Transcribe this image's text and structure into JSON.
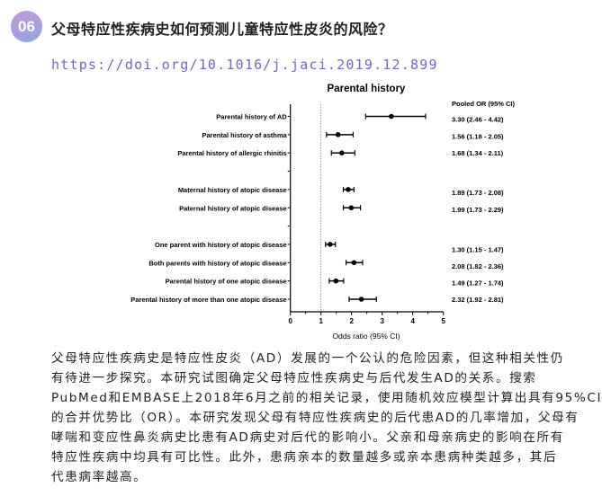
{
  "header": {
    "badge": "06",
    "title": "父母特应性疾病史如何预测儿童特应性皮炎的风险？",
    "doi": "https://doi.org/10.1016/j.jaci.2019.12.899"
  },
  "chart_data": {
    "type": "forest",
    "title": "Parental history",
    "xlabel": "Odds ratio  (95% CI)",
    "xlim": [
      0,
      5
    ],
    "xticks": [
      "0",
      "1",
      "2",
      "3",
      "4",
      "5"
    ],
    "reference_line": 1,
    "ci_header": "Pooled OR  (95% CI)",
    "rows": [
      {
        "label": "Parental history of AD",
        "or": 3.3,
        "lo": 2.46,
        "hi": 4.42,
        "text": "3.30 (2.46 - 4.42)"
      },
      {
        "label": "Parental history of asthma",
        "or": 1.56,
        "lo": 1.18,
        "hi": 2.05,
        "text": "1.56 (1.18 - 2.05)"
      },
      {
        "label": "Parental history of allergic rhinitis",
        "or": 1.68,
        "lo": 1.34,
        "hi": 2.11,
        "text": "1.68 (1.34 - 2.11)"
      },
      null,
      {
        "label": "Maternal history of atopic disease",
        "or": 1.89,
        "lo": 1.73,
        "hi": 2.08,
        "text": "1.89 (1.73 - 2.08)"
      },
      {
        "label": "Paternal history of atopic disease",
        "or": 1.99,
        "lo": 1.73,
        "hi": 2.29,
        "text": "1.99 (1.73 - 2.29)"
      },
      null,
      {
        "label": "One parent with history of atopic disease",
        "or": 1.3,
        "lo": 1.15,
        "hi": 1.47,
        "text": "1.30 (1.15 - 1.47)"
      },
      {
        "label": "Both parents with history of atopic disease",
        "or": 2.08,
        "lo": 1.82,
        "hi": 2.36,
        "text": "2.08 (1.82 - 2.36)"
      },
      {
        "label": "Parental history of one atopic disease",
        "or": 1.49,
        "lo": 1.27,
        "hi": 1.74,
        "text": "1.49 (1.27 - 1.74)"
      },
      {
        "label": "Parental history of more than one atopic disease",
        "or": 2.32,
        "lo": 1.92,
        "hi": 2.81,
        "text": "2.32 (1.92 - 2.81)"
      }
    ]
  },
  "paragraph": [
    "父母特应性疾病史是特应性皮炎（AD）发展的一个公认的危险因素，但这种相关性仍",
    "有待进一步探究。本研究试图确定父母特应性疾病史与后代发生AD的关系。搜索",
    "PubMed和EMBASE上2018年6月之前的相关记录，使用随机效应模型计算出具有95%CI",
    "的合并优势比（OR）。本研究发现父母有特应性疾病史的后代患AD的几率增加，父母有",
    "哮喘和变应性鼻炎病史比患有AD病史对后代的影响小。父亲和母亲病史的影响在所有",
    "特应性疾病中均具有可比性。此外，患病亲本的数量越多或亲本患病种类越多，其后",
    "代患病率越高。"
  ]
}
